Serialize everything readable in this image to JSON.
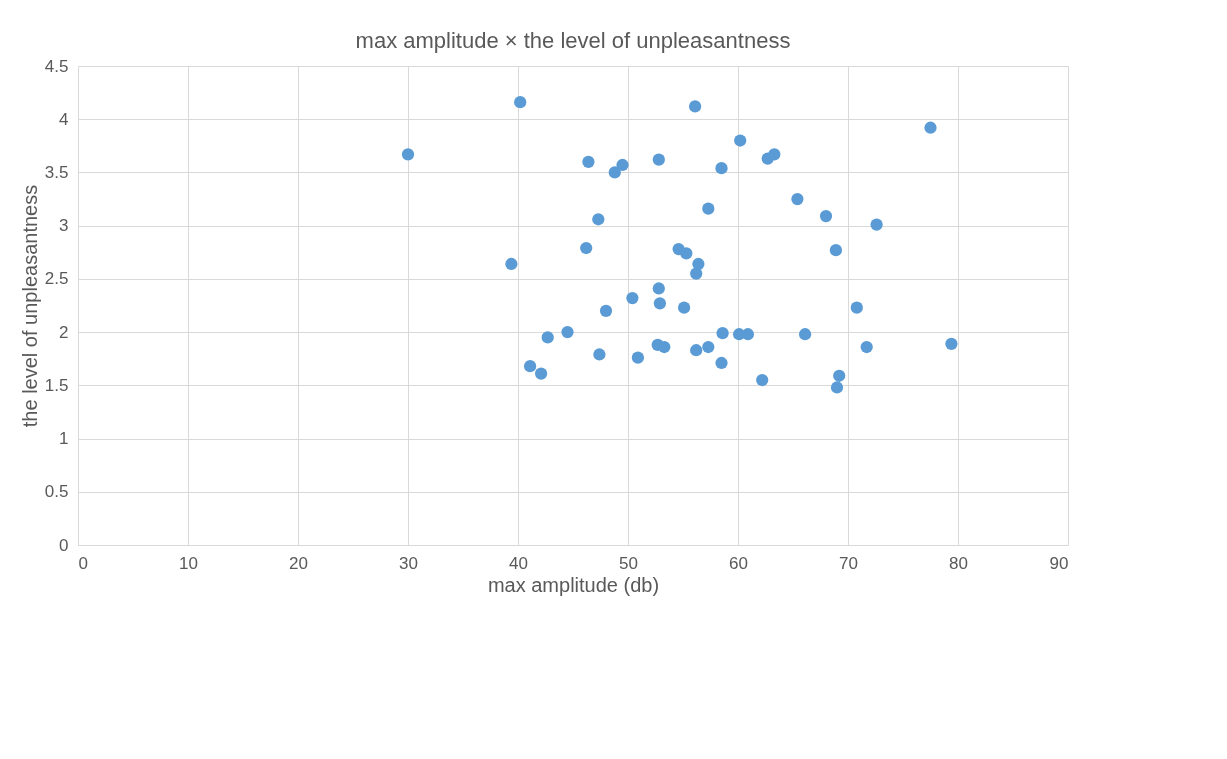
{
  "chart_data": {
    "type": "scatter",
    "title": "max amplitude × the level of unpleasantness",
    "xlabel": "max amplitude (db)",
    "ylabel": "the level of unpleasantness",
    "x": [
      30.0,
      39.4,
      40.2,
      41.1,
      42.1,
      42.7,
      44.5,
      46.2,
      46.4,
      47.3,
      47.4,
      48.0,
      48.8,
      49.5,
      50.4,
      50.9,
      52.8,
      52.8,
      52.9,
      52.7,
      53.3,
      54.6,
      55.3,
      55.1,
      56.1,
      56.4,
      56.2,
      56.2,
      57.3,
      57.3,
      58.5,
      58.6,
      58.5,
      60.2,
      60.1,
      60.9,
      62.2,
      62.7,
      63.3,
      65.4,
      66.1,
      68.0,
      68.9,
      69.2,
      69.0,
      70.8,
      71.7,
      72.6,
      77.5,
      79.4
    ],
    "series": [
      {
        "color": "#5b9bd5",
        "values": [
          3.67,
          2.64,
          4.16,
          1.68,
          1.61,
          1.95,
          2.0,
          2.79,
          3.6,
          3.06,
          1.79,
          2.2,
          3.5,
          3.57,
          2.32,
          1.76,
          3.62,
          2.41,
          2.27,
          1.88,
          1.86,
          2.78,
          2.74,
          2.23,
          4.12,
          2.64,
          2.55,
          1.83,
          3.16,
          1.86,
          3.54,
          1.99,
          1.71,
          3.8,
          1.98,
          1.98,
          1.55,
          3.63,
          3.67,
          3.25,
          1.98,
          3.09,
          2.77,
          1.59,
          1.48,
          2.23,
          1.86,
          3.01,
          3.92,
          1.89
        ]
      }
    ],
    "xlim": [
      0,
      90
    ],
    "xticks": [
      0,
      10,
      20,
      30,
      40,
      50,
      60,
      70,
      80,
      90
    ],
    "ylim": [
      0,
      4.5
    ],
    "yticks": [
      0,
      0.5,
      1,
      1.5,
      2,
      2.5,
      3,
      3.5,
      4,
      4.5
    ],
    "grid": true,
    "marker": "circle",
    "legend": false
  }
}
